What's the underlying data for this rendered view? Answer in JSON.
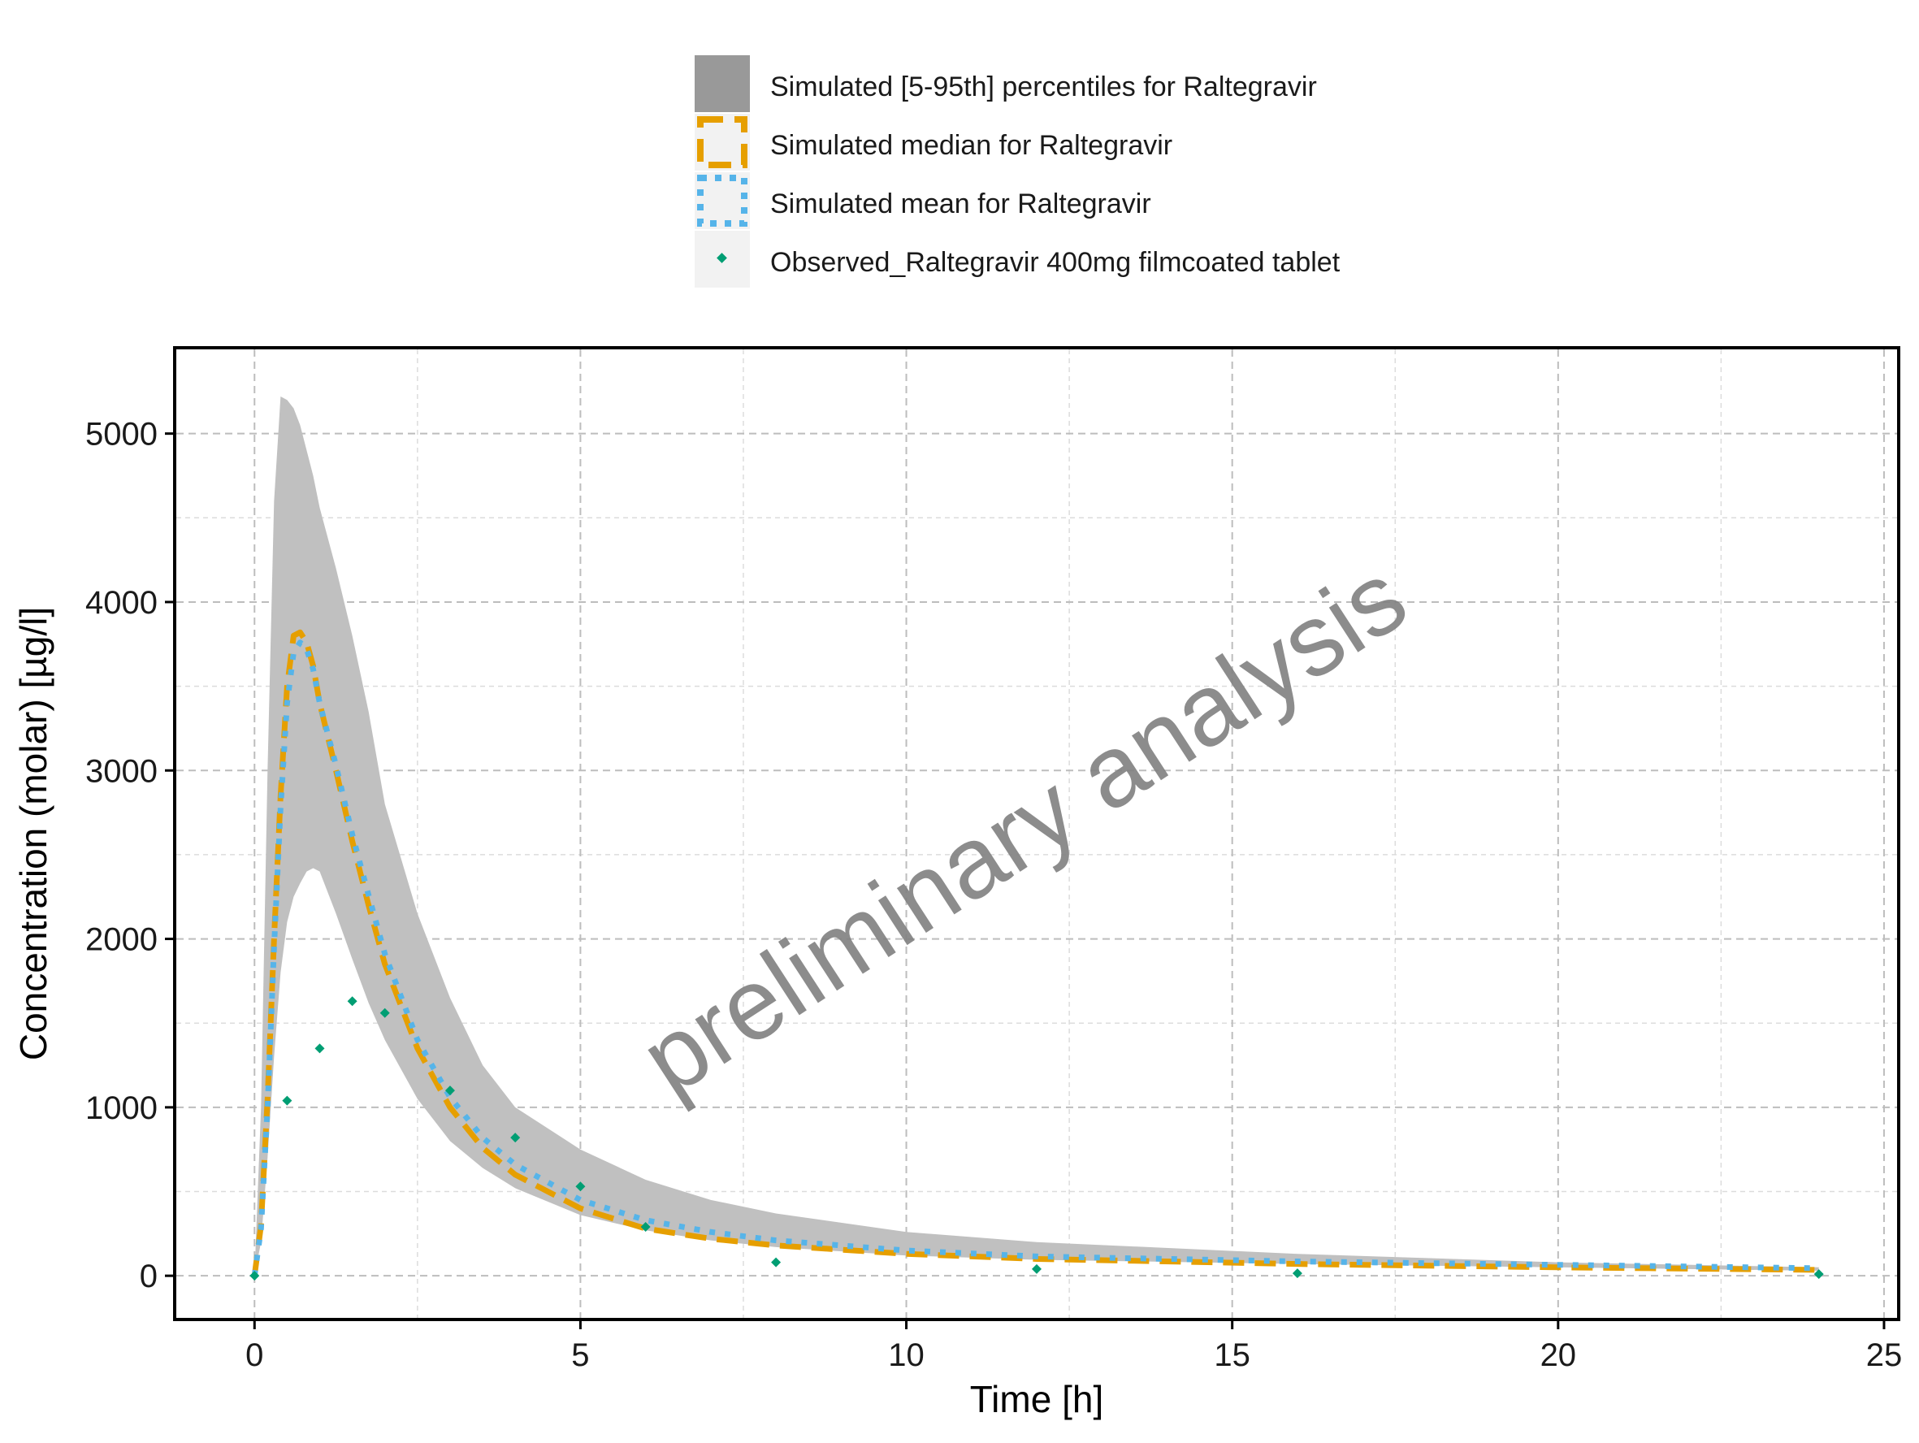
{
  "chart_data": {
    "type": "line",
    "title": "",
    "xlabel": "Time [h]",
    "ylabel": "Concentration (molar) [µg/l]",
    "xlim": [
      -1.2,
      25.2
    ],
    "ylim": [
      -250,
      5500
    ],
    "xticks": [
      0,
      5,
      10,
      15,
      20,
      25
    ],
    "yticks": [
      0,
      1000,
      2000,
      3000,
      4000,
      5000
    ],
    "grid": true,
    "legend_position": "top",
    "watermark": "preliminary analysis",
    "colors": {
      "band": "#c0c0c0",
      "band_legend": "#999999",
      "median": "#E69F00",
      "mean": "#56B4E9",
      "observed": "#009E73",
      "watermark": "#808080"
    },
    "legend": [
      {
        "key": "band",
        "label": "Simulated [5-95th] percentiles for Raltegravir"
      },
      {
        "key": "median",
        "label": "Simulated median for Raltegravir"
      },
      {
        "key": "mean",
        "label": "Simulated mean for Raltegravir"
      },
      {
        "key": "observed",
        "label": "Observed_Raltegravir 400mg filmcoated tablet"
      }
    ],
    "band": {
      "x": [
        0,
        0.1,
        0.2,
        0.3,
        0.4,
        0.5,
        0.6,
        0.7,
        0.8,
        0.9,
        1.0,
        1.25,
        1.5,
        1.75,
        2.0,
        2.5,
        3.0,
        3.5,
        4.0,
        5.0,
        6.0,
        7.0,
        8.0,
        10.0,
        12.0,
        16.0,
        20.0,
        24.0
      ],
      "lower": [
        0,
        200,
        700,
        1300,
        1800,
        2100,
        2250,
        2330,
        2400,
        2420,
        2400,
        2150,
        1880,
        1620,
        1400,
        1050,
        800,
        640,
        520,
        360,
        270,
        210,
        170,
        120,
        95,
        70,
        50,
        30
      ],
      "upper": [
        0,
        1000,
        3000,
        4600,
        5220,
        5200,
        5150,
        5050,
        4900,
        4750,
        4560,
        4200,
        3800,
        3350,
        2800,
        2150,
        1650,
        1250,
        1000,
        750,
        570,
        450,
        370,
        260,
        200,
        130,
        80,
        50
      ]
    },
    "series": [
      {
        "name": "Simulated median for Raltegravir",
        "x": [
          0,
          0.1,
          0.2,
          0.3,
          0.4,
          0.5,
          0.6,
          0.7,
          0.8,
          0.9,
          1.0,
          1.25,
          1.5,
          1.75,
          2.0,
          2.5,
          3.0,
          3.5,
          4.0,
          5.0,
          6.0,
          7.0,
          8.0,
          10.0,
          12.0,
          16.0,
          20.0,
          24.0
        ],
        "y": [
          0,
          300,
          1050,
          2000,
          2850,
          3500,
          3800,
          3820,
          3760,
          3620,
          3400,
          3000,
          2580,
          2200,
          1850,
          1350,
          1000,
          760,
          600,
          400,
          280,
          220,
          180,
          130,
          100,
          70,
          50,
          35
        ]
      },
      {
        "name": "Simulated mean for Raltegravir",
        "x": [
          0,
          0.1,
          0.2,
          0.3,
          0.4,
          0.5,
          0.6,
          0.7,
          0.8,
          0.9,
          1.0,
          1.25,
          1.5,
          1.75,
          2.0,
          2.5,
          3.0,
          3.5,
          4.0,
          5.0,
          6.0,
          7.0,
          8.0,
          10.0,
          12.0,
          16.0,
          20.0,
          24.0
        ],
        "y": [
          0,
          280,
          1000,
          1950,
          2780,
          3400,
          3700,
          3760,
          3720,
          3600,
          3400,
          3030,
          2620,
          2260,
          1910,
          1400,
          1060,
          820,
          660,
          450,
          330,
          260,
          210,
          150,
          115,
          85,
          65,
          45
        ]
      }
    ],
    "observed": {
      "name": "Observed_Raltegravir 400mg filmcoated tablet",
      "x": [
        0,
        0.5,
        1.0,
        1.5,
        2.0,
        3.0,
        4.0,
        5.0,
        6.0,
        8.0,
        12.0,
        16.0,
        24.0
      ],
      "y": [
        0,
        1040,
        1350,
        1630,
        1560,
        1100,
        820,
        530,
        290,
        80,
        40,
        15,
        10
      ]
    }
  }
}
